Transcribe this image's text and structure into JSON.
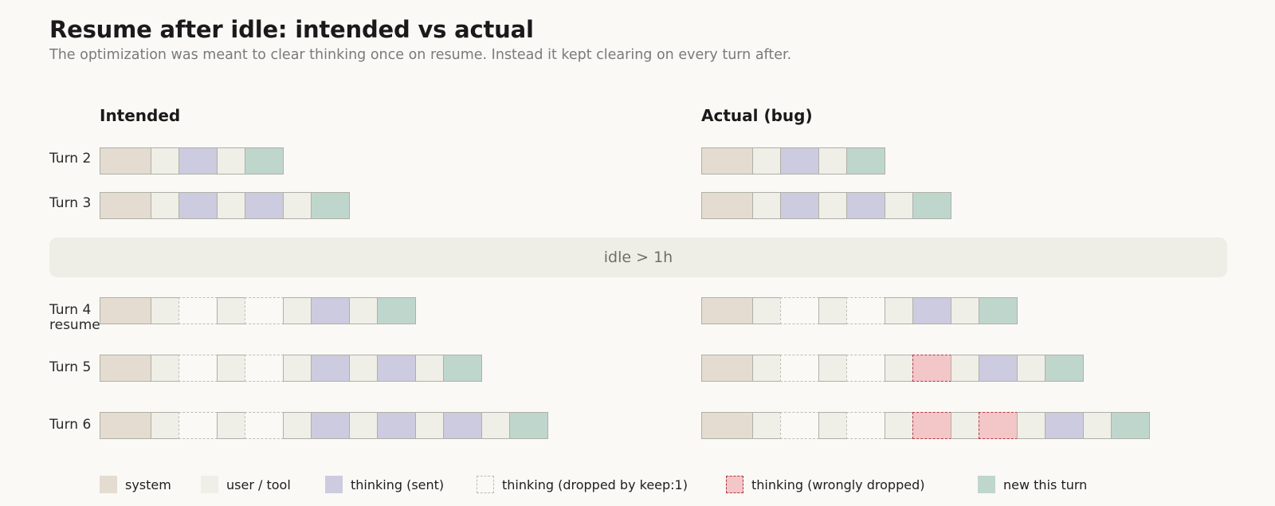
{
  "title": "Resume after idle: intended vs actual",
  "subtitle": "The optimization was meant to clear thinking once on resume. Instead it kept clearing on every turn after.",
  "columns": {
    "intended": "Intended",
    "actual": "Actual (bug)"
  },
  "idle_label": "idle > 1h",
  "rows": [
    {
      "label": "Turn 2",
      "intended": [
        "system",
        "user",
        "sent",
        "user",
        "new"
      ],
      "actual": [
        "system",
        "user",
        "sent",
        "user",
        "new"
      ]
    },
    {
      "label": "Turn 3",
      "intended": [
        "system",
        "user",
        "sent",
        "user",
        "sent",
        "user",
        "new"
      ],
      "actual": [
        "system",
        "user",
        "sent",
        "user",
        "sent",
        "user",
        "new"
      ]
    },
    {
      "label": "Turn 4\nresume",
      "intended": [
        "system",
        "user",
        "dropped",
        "user",
        "dropped",
        "user",
        "sent",
        "user",
        "new"
      ],
      "actual": [
        "system",
        "user",
        "dropped",
        "user",
        "dropped",
        "user",
        "sent",
        "user",
        "new"
      ]
    },
    {
      "label": "Turn 5",
      "intended": [
        "system",
        "user",
        "dropped",
        "user",
        "dropped",
        "user",
        "sent",
        "user",
        "sent",
        "user",
        "new"
      ],
      "actual": [
        "system",
        "user",
        "dropped",
        "user",
        "dropped",
        "user",
        "wrong",
        "user",
        "sent",
        "user",
        "new"
      ]
    },
    {
      "label": "Turn 6",
      "intended": [
        "system",
        "user",
        "dropped",
        "user",
        "dropped",
        "user",
        "sent",
        "user",
        "sent",
        "user",
        "sent",
        "user",
        "new"
      ],
      "actual": [
        "system",
        "user",
        "dropped",
        "user",
        "dropped",
        "user",
        "wrong",
        "user",
        "wrong",
        "user",
        "sent",
        "user",
        "new"
      ]
    }
  ],
  "legend": [
    {
      "type": "system",
      "label": "system"
    },
    {
      "type": "user",
      "label": "user / tool"
    },
    {
      "type": "sent",
      "label": "thinking (sent)"
    },
    {
      "type": "dropped",
      "label": "thinking (dropped by keep:1)"
    },
    {
      "type": "wrong",
      "label": "thinking (wrongly dropped)"
    },
    {
      "type": "new",
      "label": "new this turn"
    }
  ],
  "colors": {
    "system": "#e4dcd0",
    "user_tool": "#efefe7",
    "thinking_sent": "#cdcbdf",
    "thinking_wrongly_dropped": "#f3c6c8",
    "new_this_turn": "#bfd6cd",
    "idle_band": "#efeee6"
  }
}
